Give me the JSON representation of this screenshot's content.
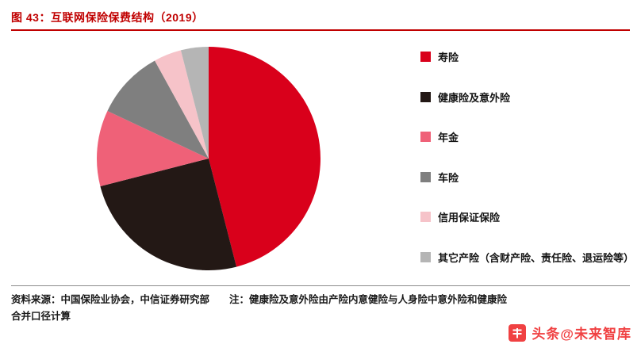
{
  "title": "图 43：互联网保险保费结构（2019）",
  "chart_data": {
    "type": "pie",
    "title": "互联网保险保费结构（2019）",
    "labels": [
      "寿险",
      "健康险及意外险",
      "年金",
      "车险",
      "信用保证保险",
      "其它产险（含财产险、责任险、退运险等）"
    ],
    "values": [
      46,
      25,
      11,
      10,
      4,
      4
    ],
    "colors": [
      "#d9001b",
      "#231815",
      "#ef6178",
      "#7f7f7f",
      "#f6c3c9",
      "#b5b5b5"
    ],
    "legend_position": "right",
    "start_angle_deg": -90,
    "direction": "clockwise",
    "data_labels": "none"
  },
  "footer": {
    "source_line1": "资料来源：中国保险业协会，中信证券研究部　　注：健康险及意外险由产险内意健险与人身险中意外险和健康险",
    "source_line2": "合并口径计算",
    "watermark": "头条@未来智库"
  },
  "colors": {
    "accent_red": "#c00000",
    "watermark_red": "#f04142",
    "divider_gray": "#8c8c8c"
  }
}
